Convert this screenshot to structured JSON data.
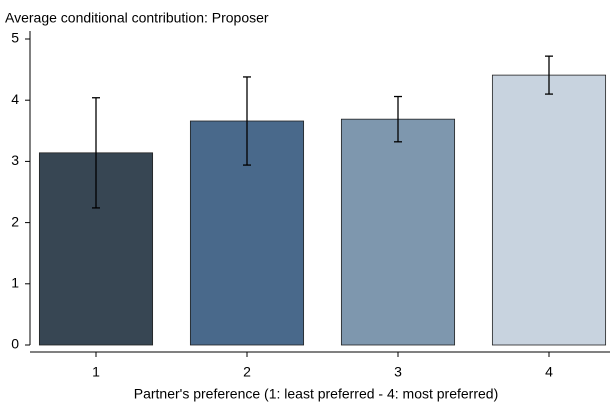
{
  "chart_data": {
    "type": "bar",
    "title": "Average conditional contribution: Proposer",
    "x_label": "Partner's preference (1: least preferred - 4: most preferred)",
    "categories": [
      "1",
      "2",
      "3",
      "4"
    ],
    "values": [
      3.14,
      3.66,
      3.69,
      4.41
    ],
    "errors": [
      0.9,
      0.72,
      0.37,
      0.31
    ],
    "colors": [
      "#374653",
      "#49698b",
      "#7e97ae",
      "#c8d3df"
    ],
    "ylim": [
      0,
      5
    ],
    "yticks": [
      0,
      1,
      2,
      3,
      4,
      5
    ],
    "grid": false
  }
}
